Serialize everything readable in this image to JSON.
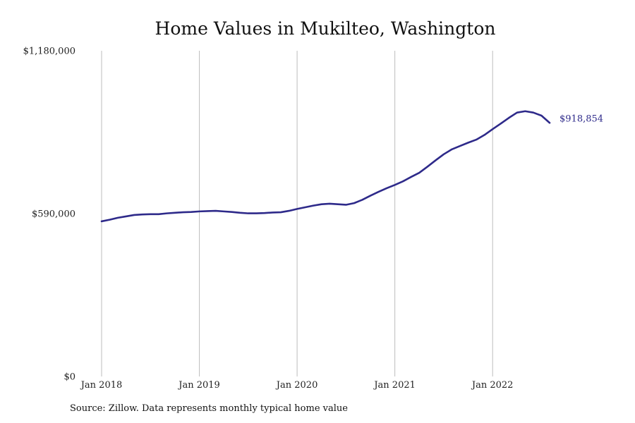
{
  "chart_data": {
    "type": "line",
    "title": "Home Values in Mukilteo, Washington",
    "xlabel": "",
    "ylabel": "",
    "ylim": [
      0,
      1180000
    ],
    "xlim": [
      "2018-01",
      "2022-08"
    ],
    "y_ticks": [
      0,
      590000,
      1180000
    ],
    "y_tick_labels": [
      "$0",
      "$590,000",
      "$1,180,000"
    ],
    "x_ticks": [
      "2018-01",
      "2019-01",
      "2020-01",
      "2021-01",
      "2022-01"
    ],
    "x_tick_labels": [
      "Jan 2018",
      "Jan 2019",
      "Jan 2020",
      "Jan 2021",
      "Jan 2022"
    ],
    "grid": "vertical",
    "series": [
      {
        "color": "#2e2a8a",
        "end_label": "$918,854",
        "x": [
          "2018-01",
          "2018-02",
          "2018-03",
          "2018-04",
          "2018-05",
          "2018-06",
          "2018-07",
          "2018-08",
          "2018-09",
          "2018-10",
          "2018-11",
          "2018-12",
          "2019-01",
          "2019-02",
          "2019-03",
          "2019-04",
          "2019-05",
          "2019-06",
          "2019-07",
          "2019-08",
          "2019-09",
          "2019-10",
          "2019-11",
          "2019-12",
          "2020-01",
          "2020-02",
          "2020-03",
          "2020-04",
          "2020-05",
          "2020-06",
          "2020-07",
          "2020-08",
          "2020-09",
          "2020-10",
          "2020-11",
          "2020-12",
          "2021-01",
          "2021-02",
          "2021-03",
          "2021-04",
          "2021-05",
          "2021-06",
          "2021-07",
          "2021-08",
          "2021-09",
          "2021-10",
          "2021-11",
          "2021-12",
          "2022-01",
          "2022-02",
          "2022-03",
          "2022-04",
          "2022-05",
          "2022-06",
          "2022-07",
          "2022-08"
        ],
        "values": [
          562000,
          568000,
          575000,
          580000,
          585000,
          587000,
          588000,
          588000,
          591000,
          593000,
          595000,
          596000,
          598000,
          599000,
          600000,
          598000,
          596000,
          593000,
          591000,
          591000,
          592000,
          594000,
          595000,
          600000,
          607000,
          613000,
          619000,
          624000,
          626000,
          624000,
          622000,
          628000,
          640000,
          655000,
          669000,
          682000,
          694000,
          707000,
          723000,
          738000,
          760000,
          783000,
          805000,
          823000,
          835000,
          847000,
          858000,
          875000,
          896000,
          916000,
          937000,
          956000,
          961000,
          956000,
          945000,
          918854
        ]
      }
    ]
  },
  "source_note": "Source: Zillow. Data represents monthly typical home value"
}
